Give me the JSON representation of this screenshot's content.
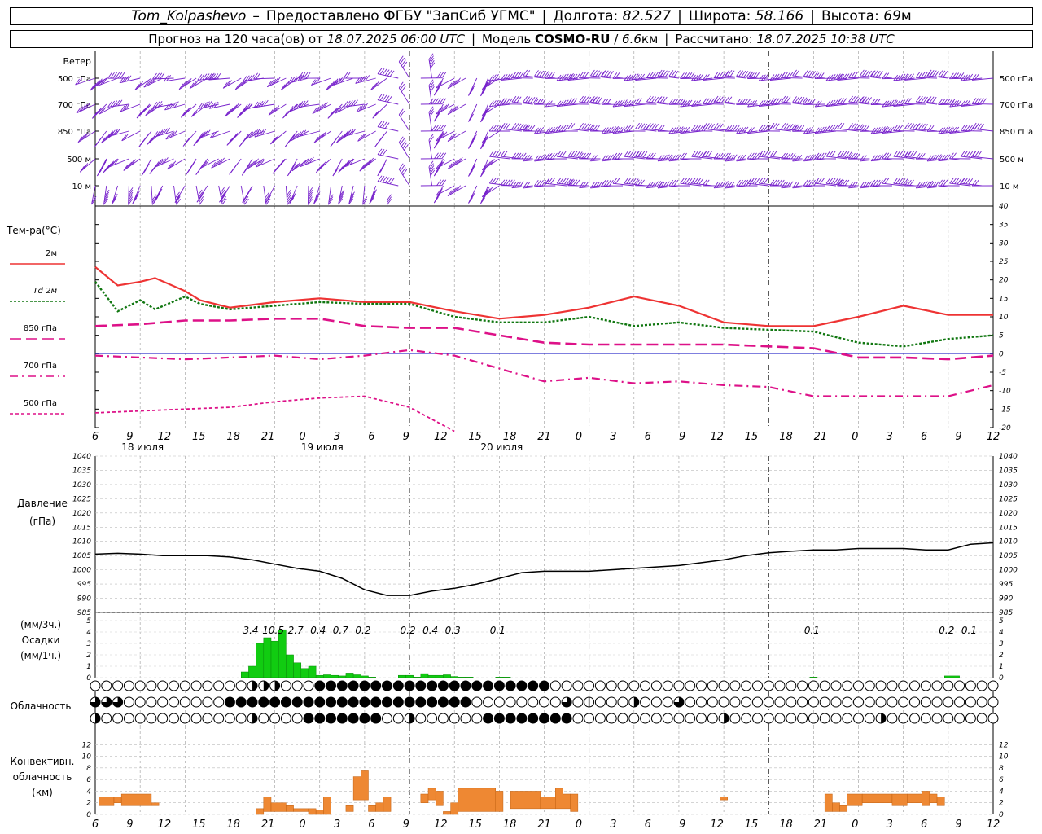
{
  "header": {
    "station": "Tom_Kolpashevo",
    "provider": "Предоставлено ФГБУ \"ЗапСиб УГМС\"",
    "lon_label": "Долгота:",
    "lon_value": "82.527",
    "lat_label": "Широта:",
    "lat_value": "58.166",
    "alt_label": "Высота:",
    "alt_value": "69",
    "alt_unit": "м",
    "forecast_prefix": "Прогноз на 120 часа(ов) от",
    "forecast_start": "18.07.2025 06:00 UTC",
    "model_label": "Модель",
    "model_name": "COSMO-RU",
    "model_res": "6.6",
    "model_res_unit": "км",
    "computed_label": "Рассчитано:",
    "computed_value": "18.07.2025 10:38 UTC"
  },
  "colors": {
    "temp2m": "#ee3333",
    "td2m": "#117711",
    "iso": "#dd1188",
    "wind": "#7722cc",
    "precip": "#11cc11",
    "conv": "#ee8833",
    "grid": "#aaaaaa",
    "zero": "#3333cc"
  },
  "time_axis": {
    "hour_labels": [
      "6",
      "9",
      "12",
      "15",
      "18",
      "21",
      "0",
      "3",
      "6",
      "9",
      "12",
      "15",
      "18",
      "21",
      "0",
      "3",
      "6",
      "9",
      "12",
      "15",
      "18",
      "21",
      "0",
      "3",
      "6",
      "9",
      "12"
    ],
    "day_labels": [
      "18 июля",
      "19 июля",
      "20 июля"
    ]
  },
  "wind_panel": {
    "title": "Ветер",
    "levels": [
      "500 гПа",
      "700 гПа",
      "850 гПа",
      "500 м",
      "10 м"
    ]
  },
  "temp_panel": {
    "title": "Тем-ра(°C)",
    "legend": [
      {
        "label": "2м",
        "style": "solid",
        "color": "#ee3333"
      },
      {
        "label": "Td 2м",
        "style": "dotted",
        "color": "#117711"
      },
      {
        "label": "850 гПа",
        "style": "dashed",
        "color": "#dd1188"
      },
      {
        "label": "700 гПа",
        "style": "dashdot",
        "color": "#dd1188"
      },
      {
        "label": "500 гПа",
        "style": "finedash",
        "color": "#dd1188"
      }
    ]
  },
  "pressure_panel": {
    "title": "Давление",
    "unit": "(гПа)"
  },
  "precip_panel": {
    "label_top": "(мм/3ч.)",
    "label_mid": "Осадки",
    "label_bot": "(мм/1ч.)",
    "accum_labels": [
      {
        "t": 21,
        "v": "3.4"
      },
      {
        "t": 24,
        "v": "10.5"
      },
      {
        "t": 27,
        "v": "2.7"
      },
      {
        "t": 30,
        "v": "0.4"
      },
      {
        "t": 33,
        "v": "0.7"
      },
      {
        "t": 36,
        "v": "0.2"
      },
      {
        "t": 42,
        "v": "0.2"
      },
      {
        "t": 45,
        "v": "0.4"
      },
      {
        "t": 48,
        "v": "0.3"
      },
      {
        "t": 54,
        "v": "0.1"
      },
      {
        "t": 96,
        "v": "0.1"
      },
      {
        "t": 114,
        "v": "0.2"
      },
      {
        "t": 117,
        "v": "0.1"
      }
    ]
  },
  "cloud_panel": {
    "title": "Облачность"
  },
  "conv_panel": {
    "title1": "Конвективн.",
    "title2": "облачность",
    "unit": "(км)"
  },
  "chart_data": [
    {
      "type": "line",
      "title": "Тем-ра(°C)",
      "x_unit": "hours from 18.07.2025 06:00 UTC",
      "ylim": [
        -20,
        40
      ],
      "y_ticks": [
        -20,
        -15,
        -10,
        -5,
        0,
        5,
        10,
        15,
        20,
        25,
        30,
        35,
        40
      ],
      "series": [
        {
          "name": "2м",
          "x": [
            0,
            3,
            6,
            8,
            12,
            14,
            18,
            24,
            30,
            36,
            42,
            48,
            54,
            60,
            66,
            72,
            78,
            84,
            90,
            96,
            102,
            108,
            114,
            120
          ],
          "values": [
            23.5,
            18.5,
            19.5,
            20.5,
            17,
            14.5,
            12.5,
            14,
            15,
            14,
            14,
            11.5,
            9.5,
            10.5,
            12.5,
            15.5,
            13,
            8.5,
            7.5,
            7.5,
            10,
            13,
            10.5,
            10.5
          ]
        },
        {
          "name": "Td 2м",
          "x": [
            0,
            3,
            6,
            8,
            12,
            14,
            18,
            24,
            30,
            36,
            42,
            48,
            54,
            60,
            66,
            72,
            78,
            84,
            90,
            96,
            102,
            108,
            114,
            120
          ],
          "values": [
            19.5,
            11.5,
            14.5,
            12,
            15.5,
            13.5,
            12,
            13,
            14,
            13.5,
            13.5,
            10,
            8.5,
            8.5,
            10,
            7.5,
            8.5,
            7,
            6.5,
            6,
            3,
            2,
            4,
            5
          ]
        },
        {
          "name": "850 гПа",
          "x": [
            0,
            6,
            12,
            18,
            24,
            30,
            36,
            42,
            48,
            54,
            60,
            66,
            72,
            78,
            84,
            90,
            96,
            102,
            108,
            114,
            120
          ],
          "values": [
            7.5,
            8,
            9,
            9,
            9.5,
            9.5,
            7.5,
            7,
            7,
            5,
            3,
            2.5,
            2.5,
            2.5,
            2.5,
            2,
            1.5,
            -1,
            -1,
            -1.5,
            -0.5
          ]
        },
        {
          "name": "700 гПа",
          "x": [
            0,
            6,
            12,
            18,
            24,
            30,
            36,
            42,
            48,
            54,
            60,
            66,
            72,
            78,
            84,
            90,
            96,
            102,
            108,
            114,
            120
          ],
          "values": [
            -0.5,
            -1,
            -1.5,
            -1,
            -0.5,
            -1.5,
            -0.5,
            1,
            -0.5,
            -4,
            -7.5,
            -6.5,
            -8,
            -7.5,
            -8.5,
            -9,
            -11.5,
            -11.5,
            -11.5,
            -11.5,
            -8.5
          ]
        },
        {
          "name": "500 гПа",
          "x": [
            0,
            6,
            12,
            18,
            24,
            30,
            36,
            42,
            48
          ],
          "values": [
            -16,
            -15.5,
            -15,
            -14.5,
            -13,
            -12,
            -11.5,
            -14.5,
            -21
          ]
        }
      ]
    },
    {
      "type": "line",
      "title": "Давление",
      "ylabel": "(гПа)",
      "ylim": [
        985,
        1040
      ],
      "y_ticks": [
        985,
        990,
        995,
        1000,
        1005,
        1010,
        1015,
        1020,
        1025,
        1030,
        1035,
        1040
      ],
      "series": [
        {
          "name": "Давление",
          "x": [
            0,
            3,
            6,
            9,
            12,
            15,
            18,
            21,
            24,
            27,
            30,
            33,
            36,
            39,
            42,
            45,
            48,
            51,
            54,
            57,
            60,
            63,
            66,
            69,
            72,
            75,
            78,
            81,
            84,
            87,
            90,
            93,
            96,
            99,
            102,
            105,
            108,
            111,
            114,
            117,
            120
          ],
          "values": [
            1005.5,
            1005.8,
            1005.5,
            1005,
            1005,
            1005,
            1004.5,
            1003.5,
            1002,
            1000.5,
            999.5,
            997,
            993,
            991,
            991,
            992.5,
            993.5,
            995,
            997,
            999,
            999.5,
            999.5,
            999.5,
            1000,
            1000.5,
            1001,
            1001.5,
            1002.5,
            1003.5,
            1005,
            1006,
            1006.5,
            1007,
            1007,
            1007.5,
            1007.5,
            1007.5,
            1007,
            1007,
            1009,
            1009.5
          ]
        }
      ]
    },
    {
      "type": "bar",
      "title": "Осадки",
      "ylabel": "(мм/1ч.)",
      "ylim": [
        0,
        5
      ],
      "y_ticks": [
        0,
        1,
        2,
        3,
        4,
        5
      ],
      "x": [
        20,
        21,
        22,
        23,
        24,
        25,
        26,
        27,
        28,
        29,
        30,
        31,
        32,
        33,
        34,
        35,
        36,
        37,
        41,
        42,
        43,
        44,
        45,
        46,
        47,
        48,
        49,
        50,
        54,
        55,
        96,
        114,
        115
      ],
      "values": [
        0.5,
        1,
        3,
        3.5,
        3.2,
        4.2,
        2,
        1.3,
        0.8,
        1,
        0.2,
        0.25,
        0.2,
        0.15,
        0.4,
        0.25,
        0.15,
        0.05,
        0.2,
        0.2,
        0.05,
        0.35,
        0.2,
        0.2,
        0.25,
        0.1,
        0.05,
        0.05,
        0.05,
        0.05,
        0.05,
        0.15,
        0.15
      ]
    },
    {
      "type": "bar",
      "title": "Конвективн. облачность",
      "ylabel": "(км)",
      "ylim": [
        0,
        14
      ],
      "y_ticks": [
        0,
        2,
        4,
        6,
        8,
        10,
        12
      ],
      "bars": [
        {
          "x0": 0.5,
          "x1": 2.5,
          "lo": 1.5,
          "hi": 3
        },
        {
          "x0": 2.5,
          "x1": 3.5,
          "lo": 2,
          "hi": 3
        },
        {
          "x0": 3.5,
          "x1": 7.5,
          "lo": 1.5,
          "hi": 3.5
        },
        {
          "x0": 7.5,
          "x1": 8.5,
          "lo": 1.5,
          "hi": 2
        },
        {
          "x0": 21.5,
          "x1": 22.5,
          "lo": 0,
          "hi": 1
        },
        {
          "x0": 22.5,
          "x1": 23.5,
          "lo": 0.5,
          "hi": 3
        },
        {
          "x0": 23.5,
          "x1": 25.5,
          "lo": 0.5,
          "hi": 2
        },
        {
          "x0": 25.5,
          "x1": 26.5,
          "lo": 0.5,
          "hi": 1.5
        },
        {
          "x0": 26.5,
          "x1": 28.5,
          "lo": 0.5,
          "hi": 1
        },
        {
          "x0": 28.5,
          "x1": 29.5,
          "lo": 0,
          "hi": 1
        },
        {
          "x0": 29.5,
          "x1": 30.5,
          "lo": 0,
          "hi": 0.8
        },
        {
          "x0": 30.5,
          "x1": 31.5,
          "lo": 0,
          "hi": 3
        },
        {
          "x0": 33.5,
          "x1": 34.5,
          "lo": 0.5,
          "hi": 1.5
        },
        {
          "x0": 34.5,
          "x1": 35.5,
          "lo": 2.5,
          "hi": 6.5
        },
        {
          "x0": 35.5,
          "x1": 36.5,
          "lo": 2.5,
          "hi": 7.5
        },
        {
          "x0": 36.5,
          "x1": 37.5,
          "lo": 0.5,
          "hi": 1.5
        },
        {
          "x0": 37.5,
          "x1": 38.5,
          "lo": 0.5,
          "hi": 2
        },
        {
          "x0": 38.5,
          "x1": 39.5,
          "lo": 0.5,
          "hi": 3
        },
        {
          "x0": 43.5,
          "x1": 44.5,
          "lo": 2,
          "hi": 3.5
        },
        {
          "x0": 44.5,
          "x1": 45.5,
          "lo": 2.5,
          "hi": 4.5
        },
        {
          "x0": 45.5,
          "x1": 46.5,
          "lo": 1.5,
          "hi": 4
        },
        {
          "x0": 46.5,
          "x1": 47.5,
          "lo": 0,
          "hi": 0.5
        },
        {
          "x0": 47.5,
          "x1": 48.5,
          "lo": 0,
          "hi": 2
        },
        {
          "x0": 48.5,
          "x1": 53.5,
          "lo": 0.5,
          "hi": 4.5
        },
        {
          "x0": 53.5,
          "x1": 54.5,
          "lo": 0.5,
          "hi": 4
        },
        {
          "x0": 55.5,
          "x1": 59.5,
          "lo": 1,
          "hi": 4
        },
        {
          "x0": 59.5,
          "x1": 61.5,
          "lo": 1,
          "hi": 3
        },
        {
          "x0": 61.5,
          "x1": 62.5,
          "lo": 1,
          "hi": 4.5
        },
        {
          "x0": 62.5,
          "x1": 63.5,
          "lo": 1,
          "hi": 3.5
        },
        {
          "x0": 63.5,
          "x1": 64.5,
          "lo": 0.5,
          "hi": 3.5
        },
        {
          "x0": 83.5,
          "x1": 84.5,
          "lo": 2.5,
          "hi": 3
        },
        {
          "x0": 97.5,
          "x1": 98.5,
          "lo": 0.5,
          "hi": 3.5
        },
        {
          "x0": 98.5,
          "x1": 99.5,
          "lo": 0.5,
          "hi": 2
        },
        {
          "x0": 99.5,
          "x1": 100.5,
          "lo": 0.5,
          "hi": 1.5
        },
        {
          "x0": 100.5,
          "x1": 102.5,
          "lo": 1.5,
          "hi": 3.5
        },
        {
          "x0": 102.5,
          "x1": 106.5,
          "lo": 2,
          "hi": 3.5
        },
        {
          "x0": 106.5,
          "x1": 108.5,
          "lo": 1.5,
          "hi": 3.5
        },
        {
          "x0": 108.5,
          "x1": 110.5,
          "lo": 2,
          "hi": 3.5
        },
        {
          "x0": 110.5,
          "x1": 111.5,
          "lo": 1.5,
          "hi": 4
        },
        {
          "x0": 111.5,
          "x1": 112.5,
          "lo": 2,
          "hi": 3.5
        },
        {
          "x0": 112.5,
          "x1": 113.5,
          "lo": 1.5,
          "hi": 3
        }
      ]
    }
  ]
}
